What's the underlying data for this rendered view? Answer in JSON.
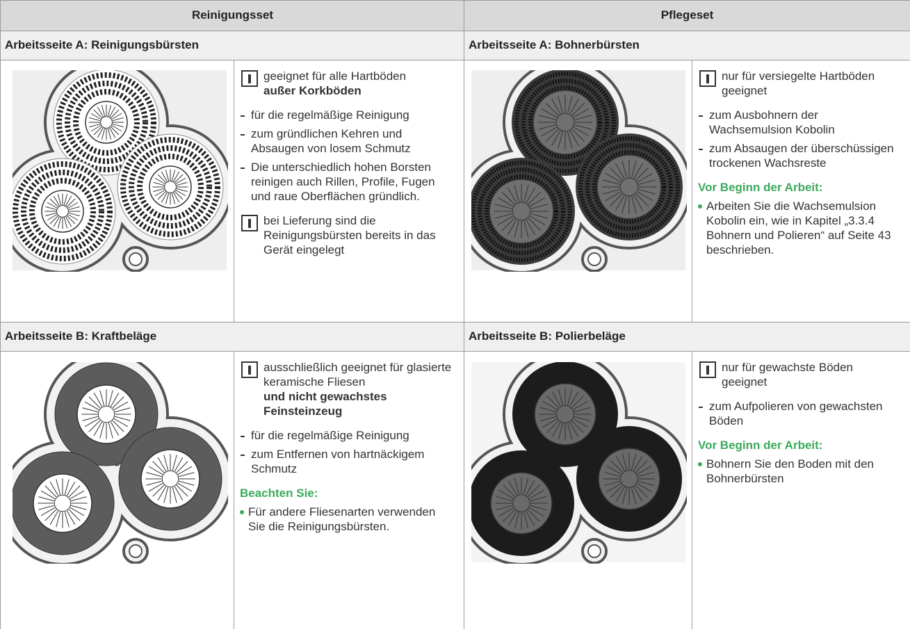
{
  "header": {
    "left": "Reinigungsset",
    "right": "Pflegeset"
  },
  "sections": [
    {
      "title": "Arbeitsseite A: Reinigungsbürsten",
      "blocks": [
        {
          "info": "geeignet für alle Hartböden",
          "info_bold": "außer Korkböden"
        },
        {
          "dash_items": [
            "für die regelmäßige Reinigung",
            "zum gründlichen Kehren und Absaugen von losem Schmutz",
            "Die unterschiedlich hohen Borsten reinigen auch Rillen, Profile, Fugen und raue Oberflächen gründlich."
          ]
        },
        {
          "info": "bei Lieferung sind die Reinigungsbürsten bereits in das Gerät eingelegt"
        }
      ]
    },
    {
      "title": "Arbeitsseite A: Bohnerbürsten",
      "blocks": [
        {
          "info": "nur für versiegelte Hartböden geeignet"
        },
        {
          "dash_items": [
            "zum Ausbohnern der Wachsemulsion Kobolin",
            "zum Absaugen der überschüssigen trockenen Wachsreste"
          ]
        },
        {
          "subheading": "Vor Beginn der Arbeit:",
          "dot_items": [
            "Arbeiten Sie die Wachsemulsion Kobolin ein, wie in Kapitel „3.3.4 Bohnern und Polieren“ auf Seite 43 beschrieben."
          ]
        }
      ]
    },
    {
      "title": "Arbeitsseite B: Kraftbeläge",
      "blocks": [
        {
          "info": "ausschließlich geeignet für glasierte keramische Fliesen",
          "info_bold": "und nicht gewachstes Feinsteinzeug"
        },
        {
          "dash_items": [
            "für die regelmäßige Reinigung",
            "zum Entfernen von hartnäckigem Schmutz"
          ]
        },
        {
          "subheading": "Beachten Sie:",
          "dot_items": [
            "Für andere Fliesenarten verwenden Sie die Reinigungsbürsten."
          ]
        }
      ]
    },
    {
      "title": "Arbeitsseite B: Polierbeläge",
      "blocks": [
        {
          "info": "nur für gewachste Böden geeignet"
        },
        {
          "dash_items": [
            "zum Aufpolieren von gewachsten Böden"
          ]
        },
        {
          "subheading": "Vor Beginn der Arbeit:",
          "dot_items": [
            "Bohnern Sie den Boden mit den Bohnerbürsten"
          ]
        }
      ]
    }
  ]
}
